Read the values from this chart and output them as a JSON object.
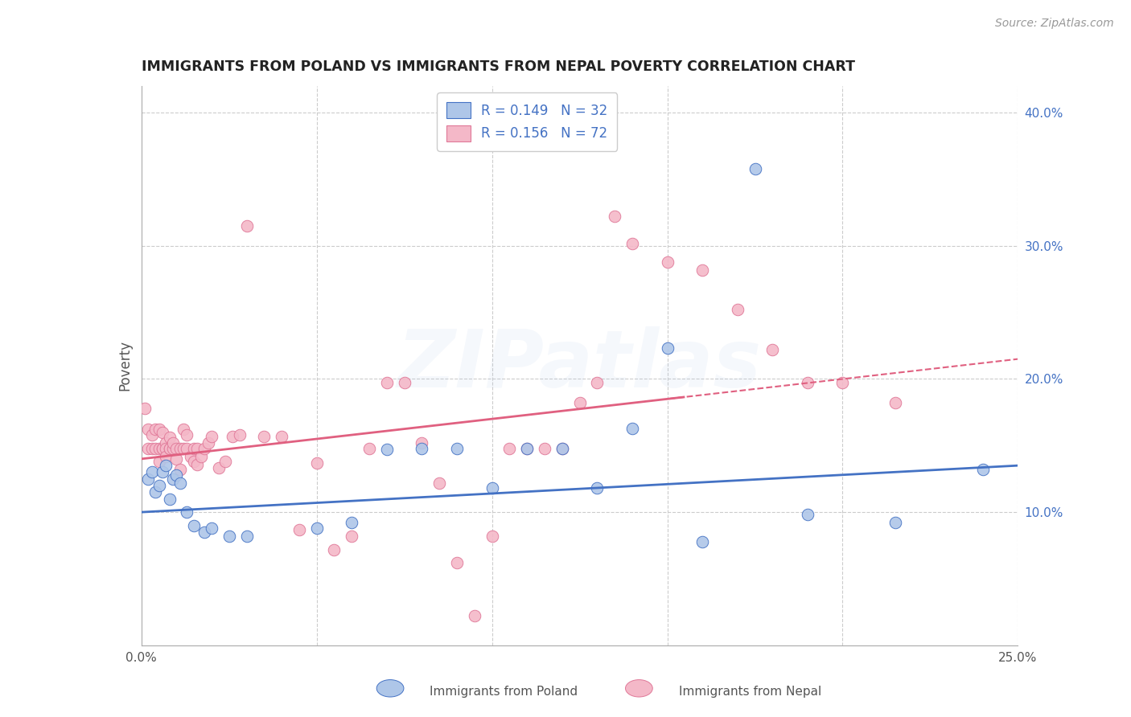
{
  "title": "IMMIGRANTS FROM POLAND VS IMMIGRANTS FROM NEPAL POVERTY CORRELATION CHART",
  "source": "Source: ZipAtlas.com",
  "ylabel": "Poverty",
  "xlim": [
    0,
    0.25
  ],
  "ylim": [
    0.0,
    0.42
  ],
  "x_tick_vals": [
    0.0,
    0.05,
    0.1,
    0.15,
    0.2,
    0.25
  ],
  "x_tick_labels": [
    "0.0%",
    "",
    "",
    "",
    "",
    "25.0%"
  ],
  "y_ticks_right": [
    0.1,
    0.2,
    0.3,
    0.4
  ],
  "y_tick_labels_right": [
    "10.0%",
    "20.0%",
    "30.0%",
    "40.0%"
  ],
  "poland_color": "#aec6e8",
  "nepal_color": "#f4b8c8",
  "poland_edge_color": "#4472c4",
  "nepal_edge_color": "#e07898",
  "poland_line_color": "#4472c4",
  "nepal_line_color": "#e06080",
  "poland_R": 0.149,
  "poland_N": 32,
  "nepal_R": 0.156,
  "nepal_N": 72,
  "background_color": "#ffffff",
  "grid_color": "#cccccc",
  "watermark_text": "ZIPatlas",
  "watermark_alpha": 0.12,
  "poland_x": [
    0.002,
    0.003,
    0.004,
    0.005,
    0.006,
    0.007,
    0.008,
    0.009,
    0.01,
    0.011,
    0.013,
    0.015,
    0.018,
    0.02,
    0.025,
    0.03,
    0.05,
    0.06,
    0.07,
    0.08,
    0.09,
    0.1,
    0.11,
    0.12,
    0.13,
    0.14,
    0.15,
    0.16,
    0.175,
    0.19,
    0.215,
    0.24
  ],
  "poland_y": [
    0.125,
    0.13,
    0.115,
    0.12,
    0.13,
    0.135,
    0.11,
    0.125,
    0.128,
    0.122,
    0.1,
    0.09,
    0.085,
    0.088,
    0.082,
    0.082,
    0.088,
    0.092,
    0.147,
    0.148,
    0.148,
    0.118,
    0.148,
    0.148,
    0.118,
    0.163,
    0.223,
    0.078,
    0.358,
    0.098,
    0.092,
    0.132
  ],
  "nepal_x": [
    0.001,
    0.002,
    0.002,
    0.003,
    0.003,
    0.004,
    0.004,
    0.005,
    0.005,
    0.005,
    0.006,
    0.006,
    0.006,
    0.007,
    0.007,
    0.007,
    0.008,
    0.008,
    0.008,
    0.009,
    0.009,
    0.01,
    0.01,
    0.011,
    0.011,
    0.012,
    0.012,
    0.013,
    0.013,
    0.014,
    0.015,
    0.015,
    0.016,
    0.016,
    0.017,
    0.018,
    0.019,
    0.02,
    0.022,
    0.024,
    0.026,
    0.028,
    0.03,
    0.035,
    0.04,
    0.045,
    0.05,
    0.055,
    0.06,
    0.065,
    0.07,
    0.075,
    0.08,
    0.085,
    0.09,
    0.095,
    0.1,
    0.105,
    0.11,
    0.115,
    0.12,
    0.125,
    0.13,
    0.135,
    0.14,
    0.15,
    0.16,
    0.17,
    0.18,
    0.19,
    0.2,
    0.215
  ],
  "nepal_y": [
    0.178,
    0.148,
    0.162,
    0.148,
    0.158,
    0.148,
    0.162,
    0.148,
    0.162,
    0.138,
    0.148,
    0.16,
    0.148,
    0.152,
    0.148,
    0.142,
    0.148,
    0.156,
    0.148,
    0.148,
    0.152,
    0.148,
    0.14,
    0.148,
    0.132,
    0.148,
    0.162,
    0.148,
    0.158,
    0.142,
    0.148,
    0.138,
    0.148,
    0.136,
    0.142,
    0.148,
    0.152,
    0.157,
    0.133,
    0.138,
    0.157,
    0.158,
    0.315,
    0.157,
    0.157,
    0.087,
    0.137,
    0.072,
    0.082,
    0.148,
    0.197,
    0.197,
    0.152,
    0.122,
    0.062,
    0.022,
    0.082,
    0.148,
    0.148,
    0.148,
    0.148,
    0.182,
    0.197,
    0.322,
    0.302,
    0.288,
    0.282,
    0.252,
    0.222,
    0.197,
    0.197,
    0.182
  ]
}
